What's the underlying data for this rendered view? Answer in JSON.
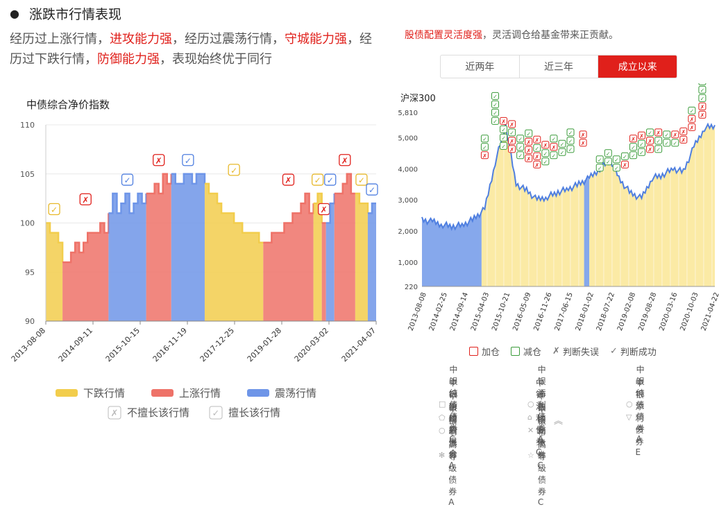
{
  "header": {
    "title": "涨跌市行情表现"
  },
  "description": {
    "parts": [
      {
        "text": "经历过上涨行情，",
        "red": false
      },
      {
        "text": "进攻能力强",
        "red": true
      },
      {
        "text": "，经历过震荡行情，",
        "red": false
      },
      {
        "text": "守城能力强",
        "red": true
      },
      {
        "text": "，经历过下跌行情，",
        "red": false
      },
      {
        "text": "防御能力强",
        "red": true
      },
      {
        "text": "，表现始终优于同行",
        "red": false
      }
    ]
  },
  "right_text": {
    "highlight": "股债配置灵活度强",
    "rest": "，灵活调仓给基金带来正贡献。"
  },
  "tabs": [
    {
      "label": "近两年",
      "active": false
    },
    {
      "label": "近三年",
      "active": false
    },
    {
      "label": "成立以来",
      "active": true
    }
  ],
  "colors": {
    "down": "#f2cd4c",
    "up": "#ee7268",
    "range": "#6e95e8",
    "red": "#e0201b",
    "green": "#3a9b3a",
    "hs_fill_blue": "#86a8ec",
    "hs_fill_yellow": "#fbeaa5",
    "hs_line": "#4f7fe0"
  },
  "legend_left": {
    "items": [
      {
        "label": "下跌行情",
        "color": "#f2cd4c"
      },
      {
        "label": "上涨行情",
        "color": "#ee7268"
      },
      {
        "label": "震荡行情",
        "color": "#6e95e8"
      }
    ],
    "marks": [
      {
        "label": "不擅长该行情",
        "icon": "cross-box-icon"
      },
      {
        "label": "擅长该行情",
        "icon": "check-box-icon"
      }
    ]
  },
  "legend_right": {
    "items": [
      {
        "label": "加仓",
        "icon": "red-box-icon"
      },
      {
        "label": "减仓",
        "icon": "green-box-icon"
      },
      {
        "label": "判断失误",
        "icon": "cross-icon"
      },
      {
        "label": "判断成功",
        "icon": "check-icon"
      }
    ],
    "funds": [
      [
        {
          "label": "中银纯债债券C",
          "icon": "square-icon",
          "glyph": "□"
        },
        {
          "label": "中银添利债券A",
          "icon": "circle-icon",
          "glyph": "○"
        },
        {
          "label": "中银纯债债券A",
          "icon": "circle-icon",
          "glyph": "○"
        }
      ],
      [
        {
          "label": "中银新趋势混合",
          "icon": "pentagon-icon",
          "glyph": "⬠"
        },
        {
          "label": "中银添利债券C",
          "icon": "house-icon",
          "glyph": "⌂"
        },
        {
          "label": "中银添利债券E",
          "icon": "triangle-icon",
          "glyph": "▽"
        }
      ],
      [
        {
          "label": "中银招利债券A",
          "icon": "circle-icon",
          "glyph": "○"
        },
        {
          "label": "中银招利债券C",
          "icon": "cross-star-icon",
          "glyph": "✕"
        }
      ],
      [
        {
          "label": "中银中高等级债券A",
          "icon": "gear-icon",
          "glyph": "✻"
        },
        {
          "label": "中银中高等级债券C",
          "icon": "star-icon",
          "glyph": "☆"
        }
      ]
    ],
    "more_icon": "chevron-up-icon"
  },
  "chart_data": [
    {
      "type": "area",
      "title": "中债综合净价指数",
      "ylim": [
        90,
        110
      ],
      "yticks": [
        90,
        95,
        100,
        105,
        110
      ],
      "xticks": [
        "2013-08-08",
        "2014-09-11",
        "2015-10-15",
        "2016-11-19",
        "2017-12-25",
        "2019-01-28",
        "2020-03-02",
        "2021-04-07"
      ],
      "x": [
        0,
        1,
        2,
        3,
        4,
        5,
        6,
        7,
        8,
        9,
        10,
        11,
        12,
        13,
        14,
        15,
        16,
        17,
        18,
        19,
        20,
        21,
        22,
        23,
        24,
        25,
        26,
        27,
        28,
        29,
        30,
        31,
        32,
        33,
        34,
        35,
        36,
        37,
        38,
        39,
        40,
        41,
        42,
        43,
        44,
        45,
        46,
        47,
        48,
        49,
        50,
        51,
        52,
        53,
        54,
        55,
        56,
        57,
        58,
        59,
        60,
        61,
        62,
        63,
        64,
        65,
        66,
        67,
        68,
        69,
        70,
        71,
        72,
        73,
        74,
        75,
        76,
        77,
        78,
        79
      ],
      "y": [
        100,
        99,
        99,
        98,
        96,
        96,
        97,
        98,
        97,
        98,
        99,
        99,
        99,
        100,
        99,
        101,
        103,
        101,
        102,
        103,
        101,
        102,
        103,
        102,
        103,
        103,
        104,
        103,
        105,
        104,
        105,
        104,
        104,
        105,
        105,
        104,
        105,
        105,
        104,
        103,
        103,
        102,
        101,
        101,
        101,
        100,
        100,
        99,
        99,
        99,
        99,
        98,
        98,
        98,
        99,
        99,
        99,
        100,
        100,
        101,
        101,
        102,
        103,
        101,
        102,
        103,
        100,
        100,
        102,
        103,
        103,
        104,
        105,
        103,
        103,
        102,
        102,
        101,
        102,
        102
      ],
      "segments": [
        {
          "type": "下跌行情",
          "from": 0,
          "to": 4,
          "mark": "check"
        },
        {
          "type": "上涨行情",
          "from": 4,
          "to": 15,
          "mark": "cross"
        },
        {
          "type": "震荡行情",
          "from": 15,
          "to": 24,
          "mark": "check"
        },
        {
          "type": "上涨行情",
          "from": 24,
          "to": 30,
          "mark": "cross"
        },
        {
          "type": "震荡行情",
          "from": 30,
          "to": 38,
          "mark": "check"
        },
        {
          "type": "下跌行情",
          "from": 38,
          "to": 52,
          "mark": "check"
        },
        {
          "type": "上涨行情",
          "from": 52,
          "to": 64,
          "mark": "cross"
        },
        {
          "type": "下跌行情",
          "from": 64,
          "to": 66,
          "mark": "check"
        },
        {
          "type": "上涨行情",
          "from": 66,
          "to": 67,
          "mark": "cross"
        },
        {
          "type": "震荡行情",
          "from": 67,
          "to": 69,
          "mark": "check"
        },
        {
          "type": "上涨行情",
          "from": 69,
          "to": 74,
          "mark": "cross"
        },
        {
          "type": "下跌行情",
          "from": 74,
          "to": 77,
          "mark": "check"
        },
        {
          "type": "震荡行情",
          "from": 77,
          "to": 79,
          "mark": "check"
        }
      ]
    },
    {
      "type": "line",
      "title": "沪深300",
      "ylim": [
        220,
        5810
      ],
      "yticks": [
        220,
        1000,
        2000,
        3000,
        4000,
        5000,
        5810
      ],
      "xticks": [
        "2013-08-08",
        "2014-02-25",
        "2014-09-14",
        "2015-04-03",
        "2015-10-21",
        "2016-05-09",
        "2016-11-26",
        "2017-06-15",
        "2018-01-02",
        "2018-07-22",
        "2019-02-08",
        "2019-08-28",
        "2020-03-16",
        "2020-10-03",
        "2021-04-22"
      ],
      "x": [
        0,
        0.5,
        1,
        1.5,
        2,
        2.5,
        3,
        3.5,
        4,
        4.5,
        5,
        5.5,
        6,
        6.5,
        7,
        7.5,
        8,
        8.5,
        9,
        9.5,
        10,
        10.5,
        11,
        11.5,
        12,
        12.5,
        13,
        13.5,
        14
      ],
      "y": [
        2350,
        2300,
        2200,
        2150,
        2200,
        2400,
        2700,
        4200,
        5400,
        3500,
        3300,
        3000,
        3100,
        3250,
        3350,
        3500,
        3700,
        4000,
        4300,
        3600,
        3200,
        3050,
        3700,
        3800,
        4000,
        3900,
        4700,
        5300,
        5400
      ],
      "shading": [
        {
          "from": 0,
          "to": 2.85,
          "color": "blue"
        },
        {
          "from": 2.85,
          "to": 7.75,
          "color": "yellow"
        },
        {
          "from": 7.75,
          "to": 8,
          "color": "blue"
        },
        {
          "from": 8,
          "to": 14,
          "color": "yellow"
        }
      ]
    }
  ]
}
